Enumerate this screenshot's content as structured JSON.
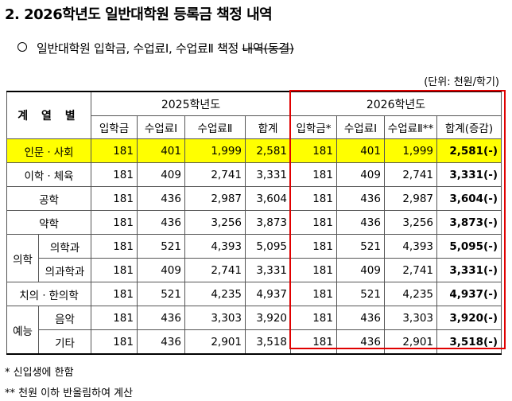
{
  "title": "2. 2026학년도 일반대학원 등록금 책정 내역",
  "subtitle": {
    "text": "일반대학원 입학금, 수업료Ⅰ, 수업료Ⅱ  책정 ",
    "strike": "내역(동결)"
  },
  "unit": "(단위: 천원/학기)",
  "table": {
    "header_group_label": "계 열 별",
    "year_2025": "2025학년도",
    "year_2026": "2026학년도",
    "cols_2025": [
      "입학금",
      "수업료Ⅰ",
      "수업료Ⅱ",
      "합계"
    ],
    "cols_2026": [
      "입학금*",
      "수업료Ⅰ",
      "수업료Ⅱ**",
      "합계(증감)"
    ],
    "rows": [
      {
        "label": "인문ㆍ사회",
        "v2025": [
          "181",
          "401",
          "1,999",
          "2,581"
        ],
        "v2026": [
          "181",
          "401",
          "1,999",
          "2,581(-)"
        ]
      },
      {
        "label": "이학ㆍ체육",
        "v2025": [
          "181",
          "409",
          "2,741",
          "3,331"
        ],
        "v2026": [
          "181",
          "409",
          "2,741",
          "3,331(-)"
        ]
      },
      {
        "label": "공학",
        "v2025": [
          "181",
          "436",
          "2,987",
          "3,604"
        ],
        "v2026": [
          "181",
          "436",
          "2,987",
          "3,604(-)"
        ]
      },
      {
        "label": "약학",
        "v2025": [
          "181",
          "436",
          "3,256",
          "3,873"
        ],
        "v2026": [
          "181",
          "436",
          "3,256",
          "3,873(-)"
        ]
      },
      {
        "group": "의학",
        "label": "의학과",
        "v2025": [
          "181",
          "521",
          "4,393",
          "5,095"
        ],
        "v2026": [
          "181",
          "521",
          "4,393",
          "5,095(-)"
        ]
      },
      {
        "group": "의학",
        "label": "의과학과",
        "v2025": [
          "181",
          "409",
          "2,741",
          "3,331"
        ],
        "v2026": [
          "181",
          "409",
          "2,741",
          "3,331(-)"
        ]
      },
      {
        "label": "치의ㆍ한의학",
        "v2025": [
          "181",
          "521",
          "4,235",
          "4,937"
        ],
        "v2026": [
          "181",
          "521",
          "4,235",
          "4,937(-)"
        ]
      },
      {
        "group": "예능",
        "label": "음악",
        "v2025": [
          "181",
          "436",
          "3,303",
          "3,920"
        ],
        "v2026": [
          "181",
          "436",
          "3,303",
          "3,920(-)"
        ]
      },
      {
        "group": "예능",
        "label": "기타",
        "v2025": [
          "181",
          "436",
          "2,901",
          "3,518"
        ],
        "v2026": [
          "181",
          "436",
          "2,901",
          "3,518(-)"
        ]
      }
    ]
  },
  "notes": [
    "* 신입생에 한함",
    "** 천원 이하 반올림하여 계산"
  ],
  "colors": {
    "highlight": "#ffff00",
    "redbox": "#e00000"
  }
}
